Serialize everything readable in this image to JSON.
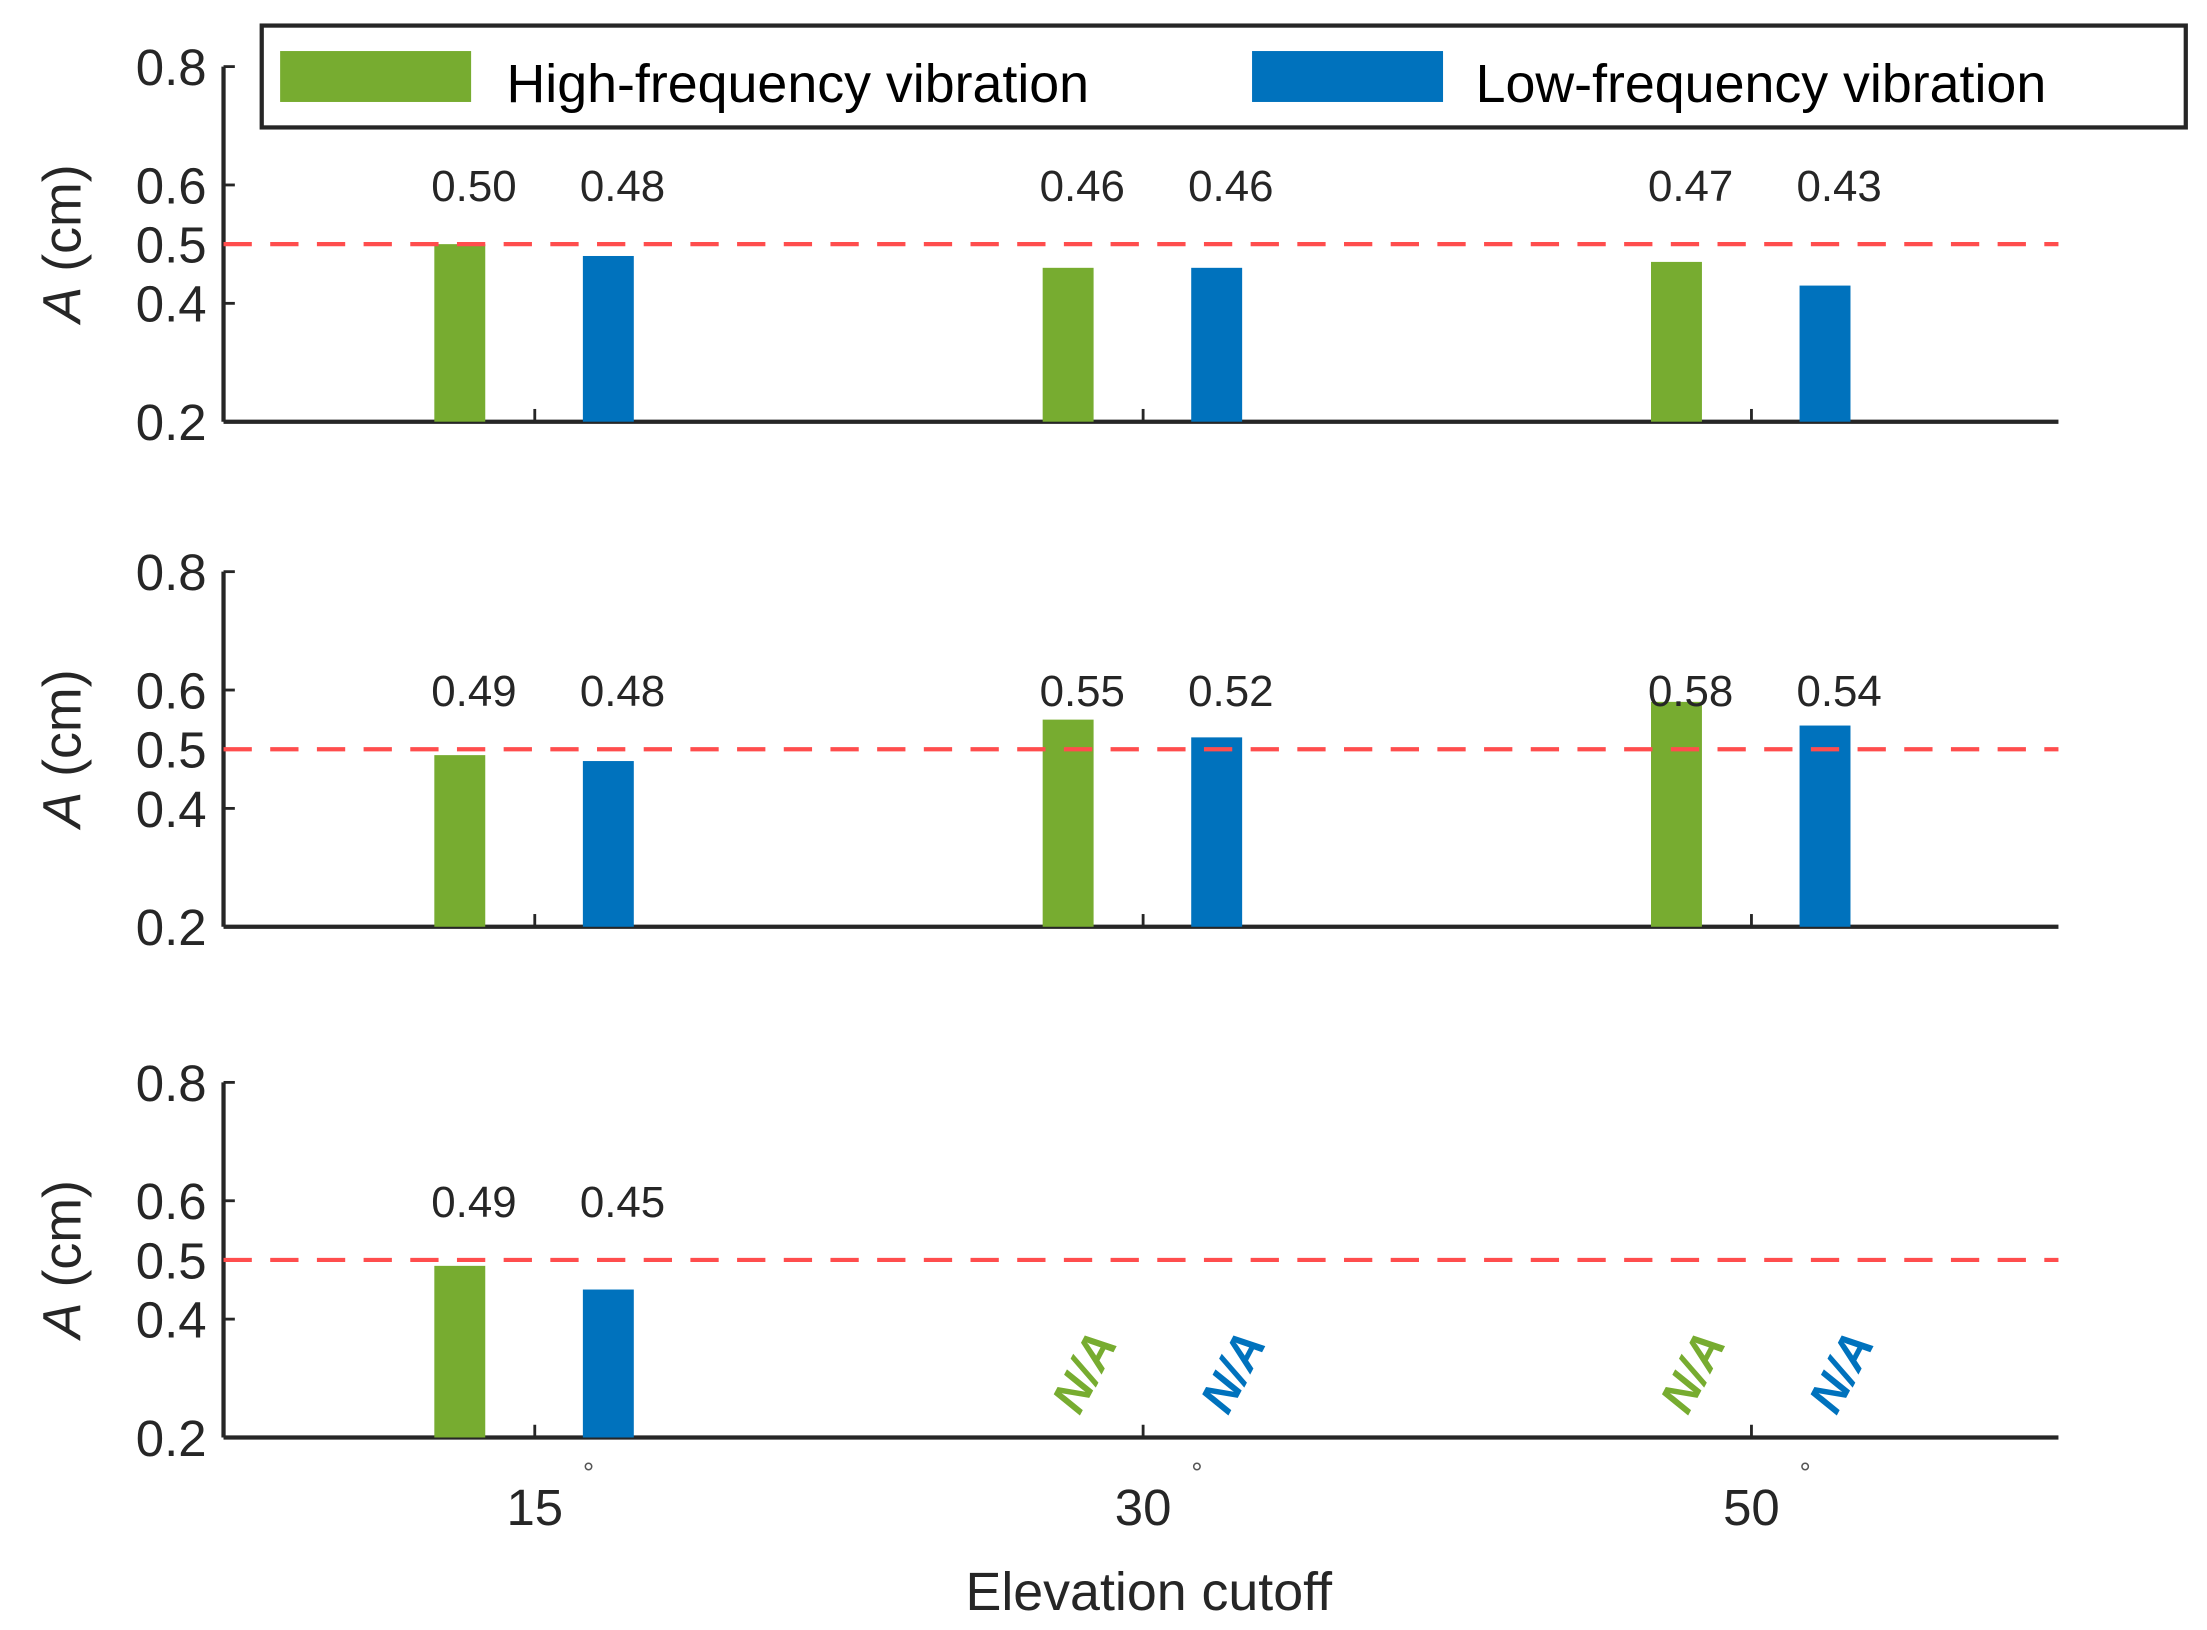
{
  "chart_data": {
    "type": "bar",
    "xlabel": "Elevation cutoff",
    "ylabel_var": "A",
    "ylabel_unit": " (cm)",
    "categories": [
      "15",
      "30",
      "50"
    ],
    "category_suffix": "°",
    "yticks": [
      "0.2",
      "0.4",
      "0.5",
      "0.6",
      "0.8"
    ],
    "ylim": [
      0.2,
      0.8
    ],
    "reference_line": 0.5,
    "legend_position": "top",
    "series_meta": [
      {
        "name": "High-frequency vibration",
        "color": "#77AC30"
      },
      {
        "name": "Low-frequency vibration",
        "color": "#0072BD"
      }
    ],
    "reference_color": "#FF4D4D",
    "na_label": "N/A",
    "panels": [
      {
        "series": [
          {
            "name": "High-frequency vibration",
            "values": [
              0.5,
              0.46,
              0.47
            ],
            "labels": [
              "0.50",
              "0.46",
              "0.47"
            ]
          },
          {
            "name": "Low-frequency vibration",
            "values": [
              0.48,
              0.46,
              0.43
            ],
            "labels": [
              "0.48",
              "0.46",
              "0.43"
            ]
          }
        ]
      },
      {
        "series": [
          {
            "name": "High-frequency vibration",
            "values": [
              0.49,
              0.55,
              0.58
            ],
            "labels": [
              "0.49",
              "0.55",
              "0.58"
            ]
          },
          {
            "name": "Low-frequency vibration",
            "values": [
              0.48,
              0.52,
              0.54
            ],
            "labels": [
              "0.48",
              "0.52",
              "0.54"
            ]
          }
        ]
      },
      {
        "series": [
          {
            "name": "High-frequency vibration",
            "values": [
              0.49,
              null,
              null
            ],
            "labels": [
              "0.49",
              "N/A",
              "N/A"
            ]
          },
          {
            "name": "Low-frequency vibration",
            "values": [
              0.45,
              null,
              null
            ],
            "labels": [
              "0.45",
              "N/A",
              "N/A"
            ]
          }
        ]
      }
    ]
  }
}
